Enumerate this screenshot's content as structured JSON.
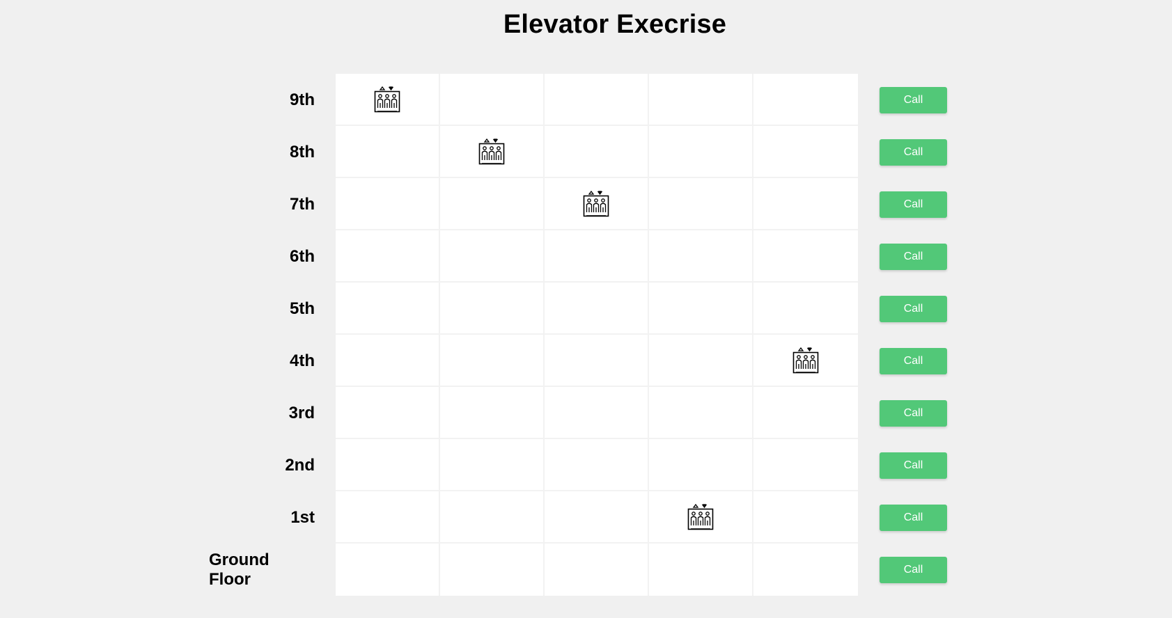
{
  "title": "Elevator Execrise",
  "floors": [
    {
      "label": "9th",
      "call_label": "Call",
      "elevator_shaft": 1
    },
    {
      "label": "8th",
      "call_label": "Call",
      "elevator_shaft": 2
    },
    {
      "label": "7th",
      "call_label": "Call",
      "elevator_shaft": 3
    },
    {
      "label": "6th",
      "call_label": "Call",
      "elevator_shaft": null
    },
    {
      "label": "5th",
      "call_label": "Call",
      "elevator_shaft": null
    },
    {
      "label": "4th",
      "call_label": "Call",
      "elevator_shaft": 5
    },
    {
      "label": "3rd",
      "call_label": "Call",
      "elevator_shaft": null
    },
    {
      "label": "2nd",
      "call_label": "Call",
      "elevator_shaft": null
    },
    {
      "label": "1st",
      "call_label": "Call",
      "elevator_shaft": 4
    },
    {
      "label": "Ground Floor",
      "call_label": "Call",
      "elevator_shaft": null
    }
  ],
  "shaft_count": 5,
  "icon": "elevator-icon",
  "colors": {
    "background": "#f0f0f0",
    "call_button": "#52c878",
    "call_text": "#ffffff",
    "shaft_bg": "#ffffff"
  }
}
